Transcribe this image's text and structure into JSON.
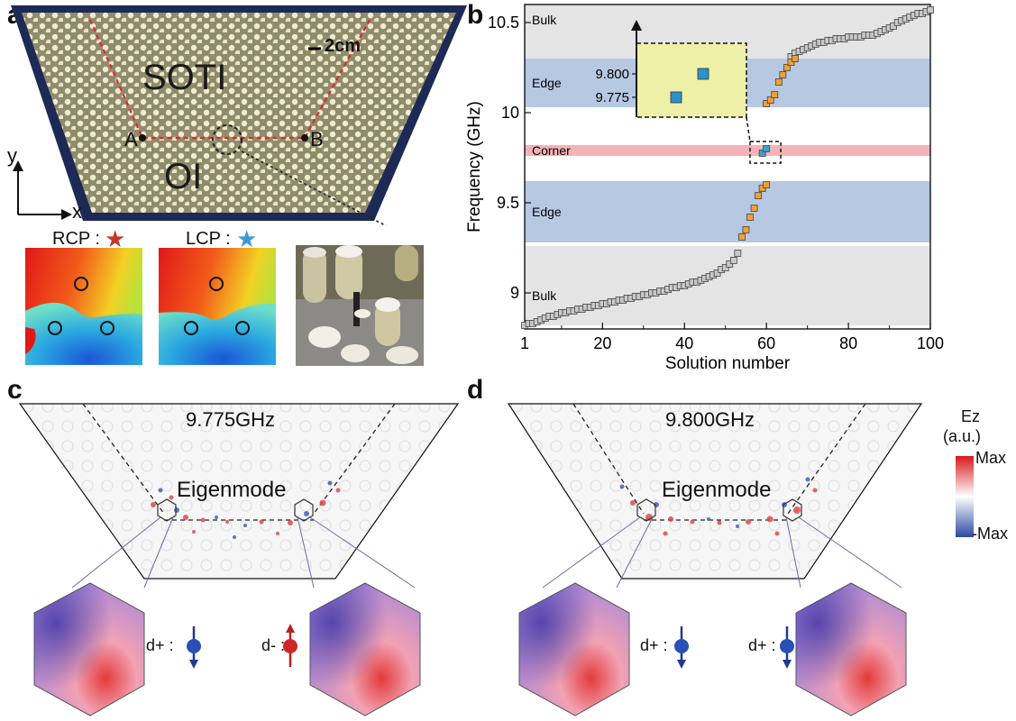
{
  "panels": {
    "a": "a",
    "b": "b",
    "c": "c",
    "d": "d"
  },
  "panel_a": {
    "region_top": "SOTI",
    "region_bottom": "OI",
    "point_a": "A",
    "point_b": "B",
    "scale_bar": "2cm",
    "axis_x": "x",
    "axis_y": "y",
    "rcp_label": "RCP :",
    "lcp_label": "LCP :",
    "rcp_star_color": "#c0392b",
    "lcp_star_color": "#3a9ad9"
  },
  "panel_c": {
    "frequency": "9.775GHz",
    "mode_label": "Eigenmode",
    "spin_left": "d+ :",
    "spin_right": "d- :",
    "spin_left_dir": "down",
    "spin_right_dir": "up"
  },
  "panel_d": {
    "frequency": "9.800GHz",
    "mode_label": "Eigenmode",
    "spin_left": "d+ :",
    "spin_right": "d+ :",
    "spin_left_dir": "down",
    "spin_right_dir": "down"
  },
  "colorbar": {
    "title_line1": "Ez",
    "title_line2": "(a.u.)",
    "max_label": "Max",
    "min_label": "-Max",
    "max_color": "#d7191c",
    "mid_color": "#ffffff",
    "min_color": "#2b4ba0"
  },
  "chart_data": {
    "type": "scatter",
    "xlabel": "Solution number",
    "ylabel": "Frequency (GHz)",
    "xlim": [
      1,
      100
    ],
    "ylim": [
      8.8,
      10.6
    ],
    "xticks": [
      1,
      20,
      40,
      60,
      80,
      100
    ],
    "yticks": [
      9,
      9.5,
      10,
      10.5
    ],
    "bands": [
      {
        "label": "Bulk",
        "from": 10.3,
        "to": 10.6,
        "color": "#e4e4e4"
      },
      {
        "label": "Edge",
        "from": 10.03,
        "to": 10.3,
        "color": "#b6c8e2"
      },
      {
        "label": "Corner",
        "from": 9.76,
        "to": 9.82,
        "color": "#f4b3b6"
      },
      {
        "label": "Edge",
        "from": 9.28,
        "to": 9.62,
        "color": "#b6c8e2"
      },
      {
        "label": "Bulk",
        "from": 8.82,
        "to": 9.26,
        "color": "#e4e4e4"
      }
    ],
    "series": [
      {
        "color": "#c8c8c8",
        "points": [
          [
            1,
            8.82
          ],
          [
            2,
            8.83
          ],
          [
            3,
            8.83
          ],
          [
            4,
            8.84
          ],
          [
            5,
            8.85
          ],
          [
            6,
            8.86
          ],
          [
            7,
            8.87
          ],
          [
            8,
            8.87
          ],
          [
            9,
            8.88
          ],
          [
            10,
            8.89
          ],
          [
            11,
            8.89
          ],
          [
            12,
            8.9
          ],
          [
            13,
            8.9
          ],
          [
            14,
            8.91
          ],
          [
            15,
            8.91
          ],
          [
            16,
            8.92
          ],
          [
            17,
            8.92
          ],
          [
            18,
            8.93
          ],
          [
            19,
            8.93
          ],
          [
            20,
            8.94
          ],
          [
            21,
            8.94
          ],
          [
            22,
            8.95
          ],
          [
            23,
            8.95
          ],
          [
            24,
            8.96
          ],
          [
            25,
            8.96
          ],
          [
            26,
            8.97
          ],
          [
            27,
            8.97
          ],
          [
            28,
            8.98
          ],
          [
            29,
            8.98
          ],
          [
            30,
            8.99
          ],
          [
            31,
            8.99
          ],
          [
            32,
            9.0
          ],
          [
            33,
            9.0
          ],
          [
            34,
            9.01
          ],
          [
            35,
            9.01
          ],
          [
            36,
            9.02
          ],
          [
            37,
            9.03
          ],
          [
            38,
            9.03
          ],
          [
            39,
            9.04
          ],
          [
            40,
            9.04
          ],
          [
            41,
            9.05
          ],
          [
            42,
            9.06
          ],
          [
            43,
            9.06
          ],
          [
            44,
            9.07
          ],
          [
            45,
            9.08
          ],
          [
            46,
            9.09
          ],
          [
            47,
            9.1
          ],
          [
            48,
            9.11
          ],
          [
            49,
            9.13
          ],
          [
            50,
            9.14
          ],
          [
            51,
            9.16
          ],
          [
            52,
            9.18
          ],
          [
            53,
            9.22
          ],
          [
            66,
            10.31
          ],
          [
            67,
            10.33
          ],
          [
            68,
            10.34
          ],
          [
            69,
            10.35
          ],
          [
            70,
            10.36
          ],
          [
            71,
            10.37
          ],
          [
            72,
            10.38
          ],
          [
            73,
            10.39
          ],
          [
            74,
            10.39
          ],
          [
            75,
            10.4
          ],
          [
            76,
            10.4
          ],
          [
            77,
            10.41
          ],
          [
            78,
            10.41
          ],
          [
            79,
            10.41
          ],
          [
            80,
            10.42
          ],
          [
            81,
            10.42
          ],
          [
            82,
            10.42
          ],
          [
            83,
            10.42
          ],
          [
            84,
            10.43
          ],
          [
            85,
            10.43
          ],
          [
            86,
            10.43
          ],
          [
            87,
            10.44
          ],
          [
            88,
            10.45
          ],
          [
            89,
            10.46
          ],
          [
            90,
            10.47
          ],
          [
            91,
            10.48
          ],
          [
            92,
            10.5
          ],
          [
            93,
            10.51
          ],
          [
            94,
            10.52
          ],
          [
            95,
            10.53
          ],
          [
            96,
            10.54
          ],
          [
            97,
            10.55
          ],
          [
            98,
            10.55
          ],
          [
            99,
            10.56
          ],
          [
            100,
            10.57
          ]
        ]
      },
      {
        "color": "#f0a033",
        "points": [
          [
            54,
            9.31
          ],
          [
            55,
            9.35
          ],
          [
            56,
            9.42
          ],
          [
            57,
            9.47
          ],
          [
            58,
            9.54
          ],
          [
            59,
            9.58
          ],
          [
            60,
            9.6
          ],
          [
            60,
            10.05
          ],
          [
            61,
            10.07
          ],
          [
            62,
            10.1
          ],
          [
            63,
            10.17
          ],
          [
            64,
            10.21
          ],
          [
            65,
            10.25
          ],
          [
            66,
            10.28
          ],
          [
            67,
            10.3
          ]
        ]
      },
      {
        "color": "#3a9fd0",
        "points": [
          [
            59,
            9.775
          ],
          [
            60,
            9.8
          ]
        ]
      }
    ],
    "inset": {
      "yticks": [
        "9.800",
        "9.775"
      ],
      "points": [
        [
          59,
          9.775
        ],
        [
          60,
          9.8
        ]
      ]
    }
  }
}
